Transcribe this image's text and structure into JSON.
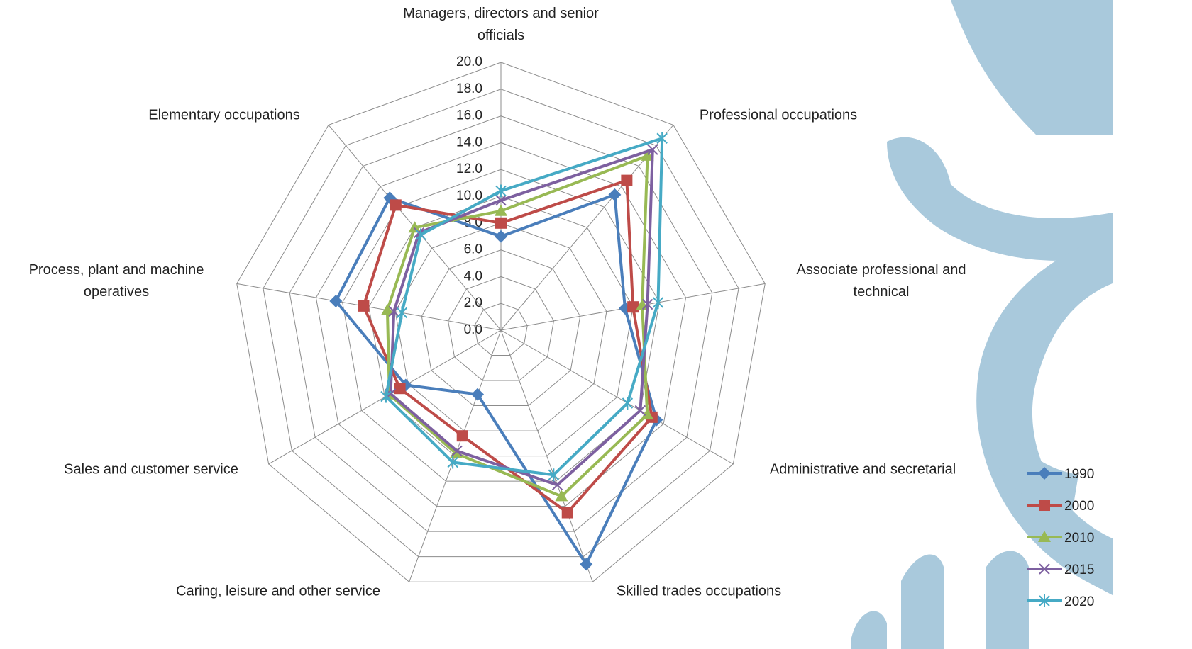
{
  "chart_data": {
    "type": "radar",
    "categories": [
      "Managers, directors and senior officials",
      "Professional occupations",
      "Associate professional and technical",
      "Administrative and secretarial",
      "Skilled trades occupations",
      "Caring, leisure and other service",
      "Sales and customer service",
      "Process, plant and machine operatives",
      "Elementary occupations"
    ],
    "rlim": [
      0,
      20
    ],
    "rticks": [
      {
        "value": 0,
        "label": "0.0"
      },
      {
        "value": 2,
        "label": "2.0"
      },
      {
        "value": 4,
        "label": "4.0"
      },
      {
        "value": 6,
        "label": "6.0"
      },
      {
        "value": 8,
        "label": "8.0"
      },
      {
        "value": 10,
        "label": "10.0"
      },
      {
        "value": 12,
        "label": "12.0"
      },
      {
        "value": 14,
        "label": "14.0"
      },
      {
        "value": 16,
        "label": "16.0"
      },
      {
        "value": 18,
        "label": "18.0"
      },
      {
        "value": 20,
        "label": "20.0"
      }
    ],
    "grid": true,
    "legend": "right",
    "series": [
      {
        "name": "1990",
        "color": "#4a7ebb",
        "marker": "diamond",
        "values": [
          7.0,
          13.2,
          9.4,
          13.4,
          18.6,
          5.1,
          8.2,
          12.5,
          12.9
        ]
      },
      {
        "name": "2000",
        "color": "#be4b48",
        "marker": "square",
        "values": [
          8.0,
          14.6,
          10.0,
          13.0,
          14.5,
          8.4,
          8.7,
          10.4,
          12.2
        ]
      },
      {
        "name": "2010",
        "color": "#98b954",
        "marker": "triangle",
        "values": [
          8.9,
          17.0,
          10.7,
          12.6,
          13.2,
          9.8,
          9.6,
          8.6,
          10.0
        ]
      },
      {
        "name": "2015",
        "color": "#7d60a0",
        "marker": "x",
        "values": [
          9.7,
          17.6,
          11.1,
          12.0,
          12.3,
          9.6,
          9.5,
          8.1,
          9.5
        ]
      },
      {
        "name": "2020",
        "color": "#46aac5",
        "marker": "star",
        "values": [
          10.4,
          18.7,
          11.9,
          10.9,
          11.5,
          10.5,
          9.9,
          7.5,
          9.3
        ]
      }
    ]
  }
}
